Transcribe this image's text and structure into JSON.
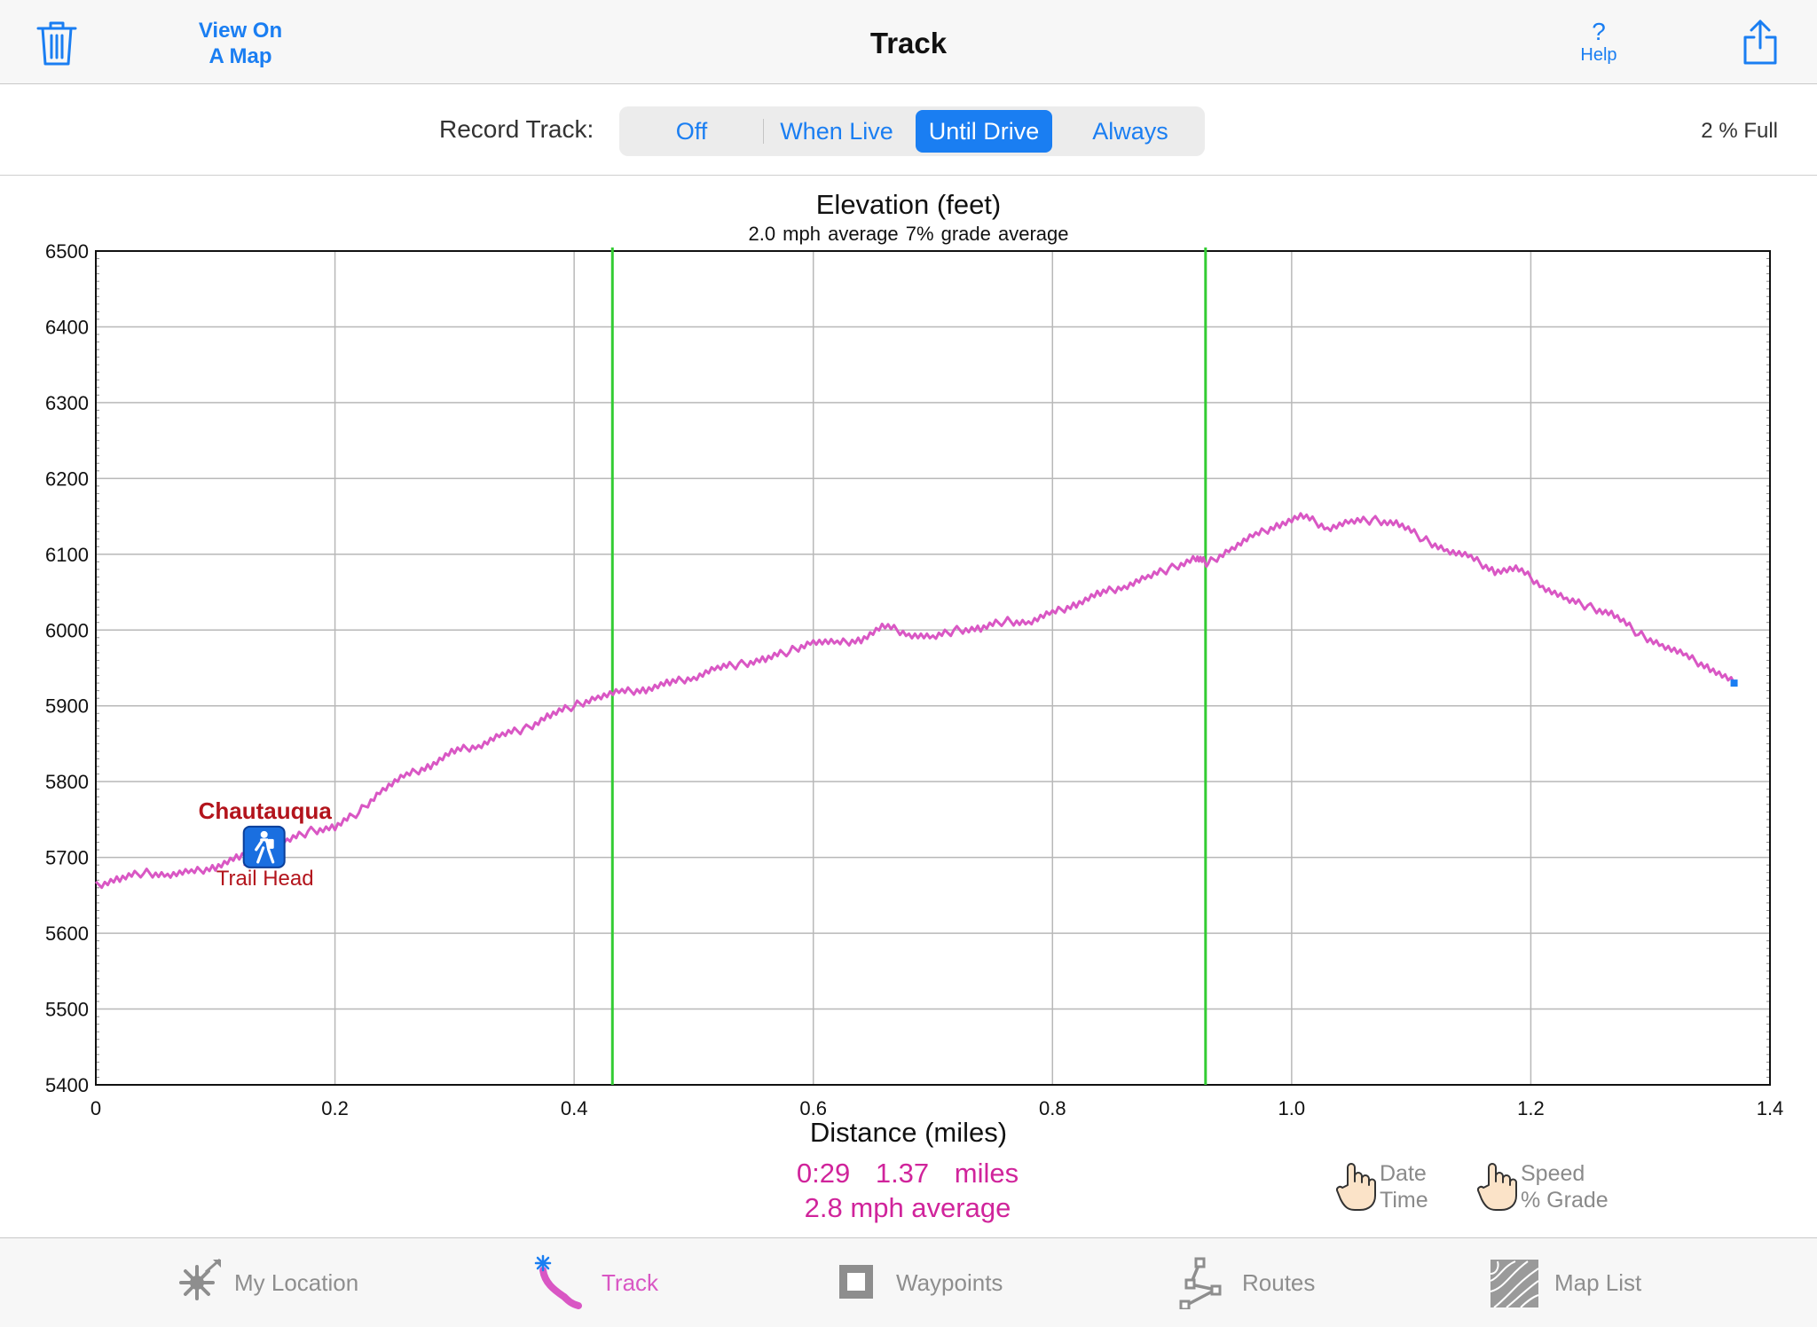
{
  "nav": {
    "view_map_line1": "View On",
    "view_map_line2": "A Map",
    "title": "Track",
    "help_symbol": "?",
    "help_label": "Help",
    "left_icon": "trash-icon",
    "right_icon": "share-icon"
  },
  "record": {
    "label": "Record Track:",
    "options": [
      "Off",
      "When Live",
      "Until Drive",
      "Always"
    ],
    "selected": "Until Drive",
    "storage": "2 % Full"
  },
  "chart_data": {
    "type": "line",
    "title": "Elevation (feet)",
    "subtitle": "2.0 mph average  7% grade average",
    "xlabel": "Distance (miles)",
    "ylabel": "",
    "xlim": [
      0,
      1.4
    ],
    "ylim": [
      5400,
      6500
    ],
    "x_ticks": [
      "0",
      "0.2",
      "0.4",
      "0.6",
      "0.8",
      "1.0",
      "1.2",
      "1.4"
    ],
    "y_ticks": [
      "5400",
      "5500",
      "5600",
      "5700",
      "5800",
      "5900",
      "6000",
      "6100",
      "6200",
      "6300",
      "6400",
      "6500"
    ],
    "grid": true,
    "line_color": "#d957c4",
    "marker_color": "#1a7ef2",
    "selection_color": "#33cc33",
    "selection_range": [
      0.432,
      0.928
    ],
    "series": [
      {
        "x": [
          0,
          0.02,
          0.04,
          0.06,
          0.08,
          0.1,
          0.12,
          0.14,
          0.16,
          0.18,
          0.2,
          0.22,
          0.24,
          0.26,
          0.28,
          0.3,
          0.32,
          0.34,
          0.36,
          0.38,
          0.4,
          0.42,
          0.44,
          0.46,
          0.48,
          0.5,
          0.52,
          0.54,
          0.56,
          0.58,
          0.6,
          0.62,
          0.64,
          0.66,
          0.68,
          0.7,
          0.72,
          0.74,
          0.76,
          0.78,
          0.8,
          0.82,
          0.84,
          0.86,
          0.88,
          0.9,
          0.92,
          0.93,
          0.95,
          0.97,
          0.99,
          1.01,
          1.03,
          1.05,
          1.07,
          1.09,
          1.11,
          1.13,
          1.15,
          1.17,
          1.19,
          1.21,
          1.23,
          1.25,
          1.27,
          1.29,
          1.31,
          1.33,
          1.35,
          1.37
        ],
        "y": [
          5663,
          5672,
          5680,
          5677,
          5680,
          5688,
          5700,
          5712,
          5722,
          5735,
          5740,
          5760,
          5790,
          5808,
          5822,
          5840,
          5848,
          5862,
          5870,
          5888,
          5900,
          5912,
          5918,
          5922,
          5930,
          5938,
          5950,
          5955,
          5962,
          5972,
          5985,
          5982,
          5988,
          6005,
          5995,
          5990,
          6000,
          6002,
          6012,
          6010,
          6022,
          6035,
          6048,
          6058,
          6070,
          6082,
          6095,
          6088,
          6108,
          6125,
          6140,
          6150,
          6135,
          6143,
          6145,
          6140,
          6120,
          6105,
          6095,
          6078,
          6080,
          6058,
          6040,
          6030,
          6020,
          5995,
          5980,
          5965,
          5950,
          5930
        ]
      }
    ],
    "waypoint": {
      "name": "Chautauqua",
      "sub_label": "Trail Head",
      "x": 0.14,
      "y": 5715,
      "icon": "hiker-icon"
    },
    "current_position": {
      "x": 1.37,
      "y": 5930
    }
  },
  "stats": {
    "time": "0:29",
    "distance": "1.37 miles",
    "speed": "2.8 mph average"
  },
  "toggles": {
    "date_line1": "Date",
    "date_line2": "Time",
    "speed_line1": "Speed",
    "speed_line2": "% Grade"
  },
  "tabs": [
    {
      "label": "My Location",
      "icon": "compass-icon",
      "active": false
    },
    {
      "label": "Track",
      "icon": "track-icon",
      "active": true
    },
    {
      "label": "Waypoints",
      "icon": "waypoint-square-icon",
      "active": false
    },
    {
      "label": "Routes",
      "icon": "route-icon",
      "active": false
    },
    {
      "label": "Map List",
      "icon": "map-list-icon",
      "active": false
    }
  ]
}
